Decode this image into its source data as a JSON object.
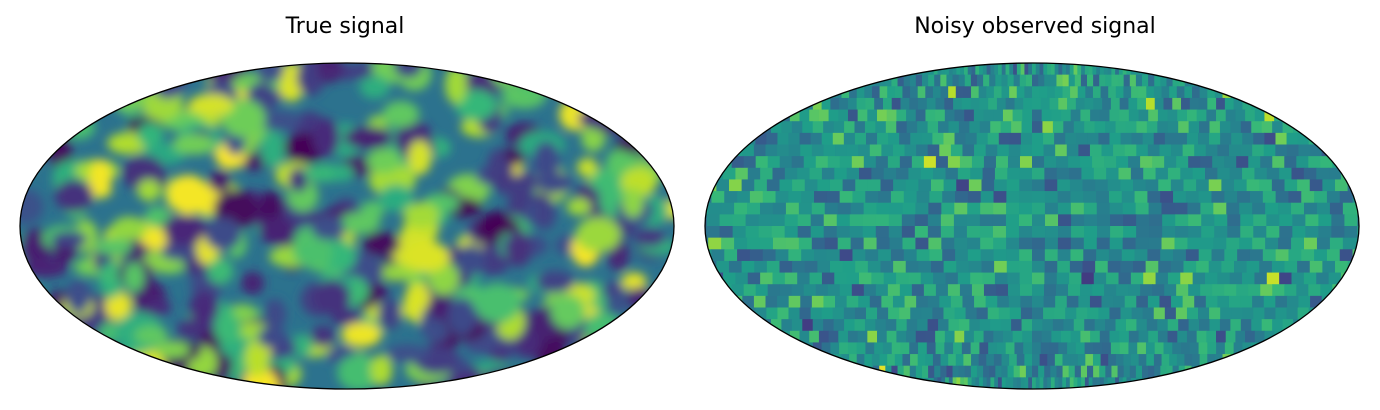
{
  "chart_data": [
    {
      "type": "heatmap",
      "title": "True signal",
      "projection": "mollweide",
      "colormap": "viridis",
      "style": "smooth"
    },
    {
      "type": "heatmap",
      "title": "Noisy observed signal",
      "projection": "mollweide",
      "colormap": "viridis",
      "style": "pixelated"
    }
  ]
}
